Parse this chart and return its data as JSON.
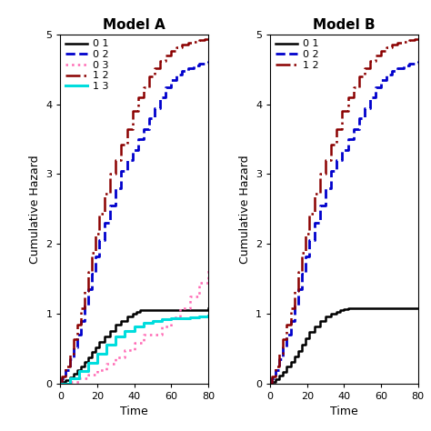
{
  "title_A": "Model A",
  "title_B": "Model B",
  "xlabel": "Time",
  "ylabel": "Cumulative Hazard",
  "xlim": [
    0,
    80
  ],
  "ylim": [
    0,
    5
  ],
  "xticks": [
    0,
    20,
    40,
    60,
    80
  ],
  "yticks": [
    0,
    1,
    2,
    3,
    4,
    5
  ],
  "modelA": {
    "curves": [
      {
        "key": "01",
        "x": [
          0,
          1,
          3,
          5,
          7,
          9,
          11,
          13,
          15,
          17,
          19,
          21,
          24,
          27,
          30,
          33,
          36,
          39,
          41,
          43,
          80
        ],
        "y": [
          0,
          0.02,
          0.05,
          0.09,
          0.14,
          0.19,
          0.25,
          0.31,
          0.38,
          0.45,
          0.52,
          0.6,
          0.68,
          0.76,
          0.84,
          0.9,
          0.96,
          1.0,
          1.03,
          1.05,
          1.08
        ],
        "color": "#000000",
        "linestyle": "solid",
        "linewidth": 1.8,
        "label": "0 1"
      },
      {
        "key": "02",
        "x": [
          0,
          1,
          3,
          5,
          7,
          9,
          11,
          13,
          15,
          17,
          19,
          21,
          24,
          27,
          30,
          33,
          36,
          39,
          42,
          45,
          48,
          51,
          54,
          57,
          60,
          63,
          66,
          69,
          72,
          75,
          78,
          80
        ],
        "y": [
          0,
          0.08,
          0.2,
          0.35,
          0.52,
          0.7,
          0.9,
          1.12,
          1.35,
          1.58,
          1.82,
          2.06,
          2.3,
          2.55,
          2.8,
          3.05,
          3.2,
          3.35,
          3.5,
          3.65,
          3.8,
          3.95,
          4.1,
          4.25,
          4.35,
          4.42,
          4.48,
          4.52,
          4.55,
          4.58,
          4.6,
          4.62
        ],
        "color": "#0000CC",
        "linestyle": "dashed",
        "linewidth": 2.0,
        "label": "0 2"
      },
      {
        "key": "03",
        "x": [
          0,
          5,
          10,
          15,
          20,
          25,
          30,
          35,
          40,
          45,
          55,
          60,
          65,
          70,
          75,
          80
        ],
        "y": [
          0,
          0.03,
          0.07,
          0.13,
          0.2,
          0.28,
          0.38,
          0.48,
          0.59,
          0.7,
          0.82,
          0.95,
          1.08,
          1.25,
          1.45,
          1.65
        ],
        "color": "#FF69B4",
        "linestyle": "dotted",
        "linewidth": 1.8,
        "label": "0 3"
      },
      {
        "key": "12",
        "x": [
          0,
          1,
          3,
          5,
          7,
          9,
          11,
          13,
          15,
          17,
          19,
          21,
          24,
          27,
          30,
          33,
          36,
          39,
          42,
          45,
          48,
          51,
          54,
          57,
          60,
          63,
          66,
          69,
          72,
          75,
          78,
          80
        ],
        "y": [
          0,
          0.1,
          0.25,
          0.43,
          0.63,
          0.85,
          1.08,
          1.33,
          1.6,
          1.87,
          2.15,
          2.43,
          2.72,
          3.0,
          3.2,
          3.42,
          3.65,
          3.9,
          4.1,
          4.25,
          4.4,
          4.52,
          4.62,
          4.7,
          4.77,
          4.82,
          4.85,
          4.88,
          4.9,
          4.92,
          4.93,
          4.93
        ],
        "color": "#8B0000",
        "linestyle": "dashdot",
        "linewidth": 1.8,
        "label": "1 2"
      },
      {
        "key": "13",
        "x": [
          0,
          5,
          10,
          15,
          20,
          25,
          30,
          35,
          40,
          45,
          50,
          55,
          60,
          65,
          70,
          75,
          80
        ],
        "y": [
          0,
          0.08,
          0.18,
          0.3,
          0.43,
          0.56,
          0.68,
          0.76,
          0.82,
          0.87,
          0.9,
          0.92,
          0.93,
          0.94,
          0.95,
          0.96,
          0.97
        ],
        "color": "#00DDDD",
        "linestyle": "solid",
        "linewidth": 2.2,
        "label": "1 3"
      }
    ]
  },
  "modelB": {
    "curves": [
      {
        "key": "01",
        "x": [
          0,
          1,
          3,
          5,
          7,
          9,
          11,
          13,
          15,
          17,
          19,
          21,
          24,
          27,
          30,
          33,
          36,
          38,
          40,
          42,
          80
        ],
        "y": [
          0,
          0.02,
          0.06,
          0.11,
          0.17,
          0.24,
          0.31,
          0.39,
          0.47,
          0.56,
          0.65,
          0.74,
          0.82,
          0.9,
          0.96,
          1.0,
          1.03,
          1.05,
          1.07,
          1.08,
          1.08
        ],
        "color": "#000000",
        "linestyle": "solid",
        "linewidth": 1.8,
        "label": "0 1"
      },
      {
        "key": "02",
        "x": [
          0,
          1,
          3,
          5,
          7,
          9,
          11,
          13,
          15,
          17,
          19,
          21,
          24,
          27,
          30,
          33,
          36,
          39,
          42,
          45,
          48,
          51,
          54,
          57,
          60,
          63,
          66,
          69,
          72,
          75,
          78,
          80
        ],
        "y": [
          0,
          0.08,
          0.2,
          0.35,
          0.52,
          0.7,
          0.9,
          1.12,
          1.35,
          1.58,
          1.82,
          2.06,
          2.3,
          2.55,
          2.8,
          3.05,
          3.2,
          3.35,
          3.5,
          3.65,
          3.8,
          3.95,
          4.1,
          4.25,
          4.35,
          4.42,
          4.48,
          4.52,
          4.55,
          4.58,
          4.6,
          4.62
        ],
        "color": "#0000CC",
        "linestyle": "dashed",
        "linewidth": 2.0,
        "label": "0 2"
      },
      {
        "key": "12",
        "x": [
          0,
          1,
          3,
          5,
          7,
          9,
          11,
          13,
          15,
          17,
          19,
          21,
          24,
          27,
          30,
          33,
          36,
          39,
          42,
          45,
          48,
          51,
          54,
          57,
          60,
          63,
          66,
          69,
          72,
          75,
          78,
          80
        ],
        "y": [
          0,
          0.1,
          0.25,
          0.43,
          0.63,
          0.85,
          1.08,
          1.33,
          1.6,
          1.87,
          2.15,
          2.43,
          2.72,
          3.0,
          3.2,
          3.42,
          3.65,
          3.9,
          4.1,
          4.25,
          4.4,
          4.52,
          4.62,
          4.7,
          4.77,
          4.82,
          4.85,
          4.88,
          4.9,
          4.92,
          4.93,
          4.93
        ],
        "color": "#8B0000",
        "linestyle": "dashdot",
        "linewidth": 1.8,
        "label": "1 2"
      }
    ]
  },
  "title_fontsize": 11,
  "axis_fontsize": 9,
  "tick_fontsize": 8,
  "legend_fontsize": 8
}
